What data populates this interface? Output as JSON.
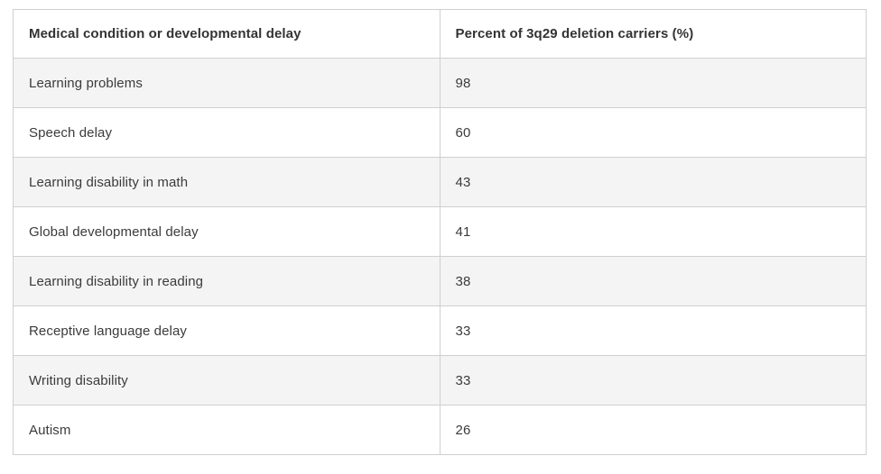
{
  "table": {
    "columns": [
      {
        "label": "Medical condition or developmental delay"
      },
      {
        "label": "Percent of 3q29 deletion carriers (%)"
      }
    ],
    "rows": [
      {
        "condition": "Learning problems",
        "percent": "98"
      },
      {
        "condition": "Speech delay",
        "percent": "60"
      },
      {
        "condition": "Learning disability in math",
        "percent": "43"
      },
      {
        "condition": "Global developmental delay",
        "percent": "41"
      },
      {
        "condition": "Learning disability in reading",
        "percent": "38"
      },
      {
        "condition": "Receptive language delay",
        "percent": "33"
      },
      {
        "condition": "Writing disability",
        "percent": "33"
      },
      {
        "condition": "Autism",
        "percent": "26"
      }
    ]
  },
  "chart_data": {
    "type": "table",
    "title": "",
    "columns": [
      "Medical condition or developmental delay",
      "Percent of 3q29 deletion carriers (%)"
    ],
    "categories": [
      "Learning problems",
      "Speech delay",
      "Learning disability in math",
      "Global developmental delay",
      "Learning disability in reading",
      "Receptive language delay",
      "Writing disability",
      "Autism"
    ],
    "values": [
      98,
      60,
      43,
      41,
      38,
      33,
      33,
      26
    ]
  },
  "colors": {
    "border": "#cfcfcf",
    "stripe_row_bg": "#f4f4f4",
    "row_bg": "#ffffff",
    "text": "#3b3b3b"
  }
}
